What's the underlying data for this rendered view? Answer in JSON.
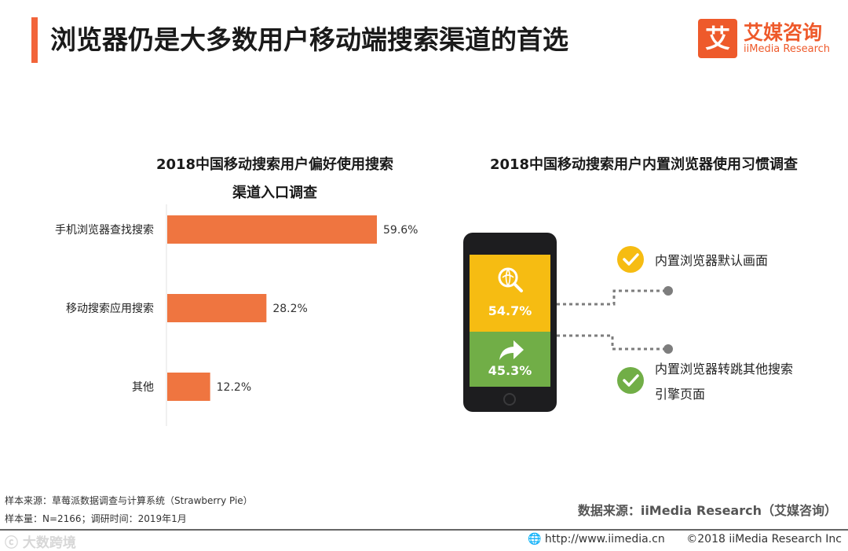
{
  "page": {
    "title": "浏览器仍是大多数用户移动端搜索渠道的首选",
    "accent_color": "#f2643a"
  },
  "logo": {
    "badge": "艾",
    "name_cn": "艾媒咨询",
    "name_en": "iiMedia Research"
  },
  "chart_data": [
    {
      "type": "bar",
      "orientation": "horizontal",
      "title_lines": [
        "2018中国移动搜索用户偏好使用搜索",
        "渠道入口调查"
      ],
      "categories": [
        "手机浏览器查找搜索",
        "移动搜索应用搜索",
        "其他"
      ],
      "values": [
        59.6,
        28.2,
        12.2
      ],
      "value_labels": [
        "59.6%",
        "28.2%",
        "12.2%"
      ],
      "unit": "%",
      "color": "#ef7540",
      "xlim": [
        0,
        100
      ],
      "grid": false,
      "legend": "none"
    },
    {
      "type": "pie",
      "style": "phone-infographic",
      "title": "2018中国移动搜索用户内置浏览器使用习惯调查",
      "categories": [
        "内置浏览器默认画面",
        "内置浏览器转跳其他搜索引擎页面"
      ],
      "label_lines": [
        [
          "内置浏览器默认画面"
        ],
        [
          "内置浏览器转跳其他搜索",
          "引擎页面"
        ]
      ],
      "values": [
        54.7,
        45.3
      ],
      "value_labels": [
        "54.7%",
        "45.3%"
      ],
      "colors": [
        "#f6bc12",
        "#71ae47"
      ],
      "icons": [
        "search-globe-icon",
        "share-arrow-icon"
      ]
    }
  ],
  "footer": {
    "source_note": "样本来源：草莓派数据调查与计算系统（Strawberry Pie）",
    "sample_note": "样本量：N=2166；调研时间：2019年1月",
    "data_source": "数据来源：iiMedia Research（艾媒咨询）",
    "url": "http://www.iimedia.cn",
    "copyright": "©2018  iiMedia Research  Inc",
    "watermark": "ⓒ 大数跨境"
  }
}
